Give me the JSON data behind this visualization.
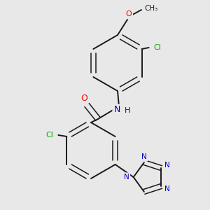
{
  "background_color": "#e8e8e8",
  "bond_color": "#1a1a1a",
  "atom_colors": {
    "O": "#ff0000",
    "N": "#0000cc",
    "Cl": "#00aa00",
    "H": "#1a1a1a",
    "C": "#1a1a1a"
  },
  "figsize": [
    3.0,
    3.0
  ],
  "dpi": 100
}
